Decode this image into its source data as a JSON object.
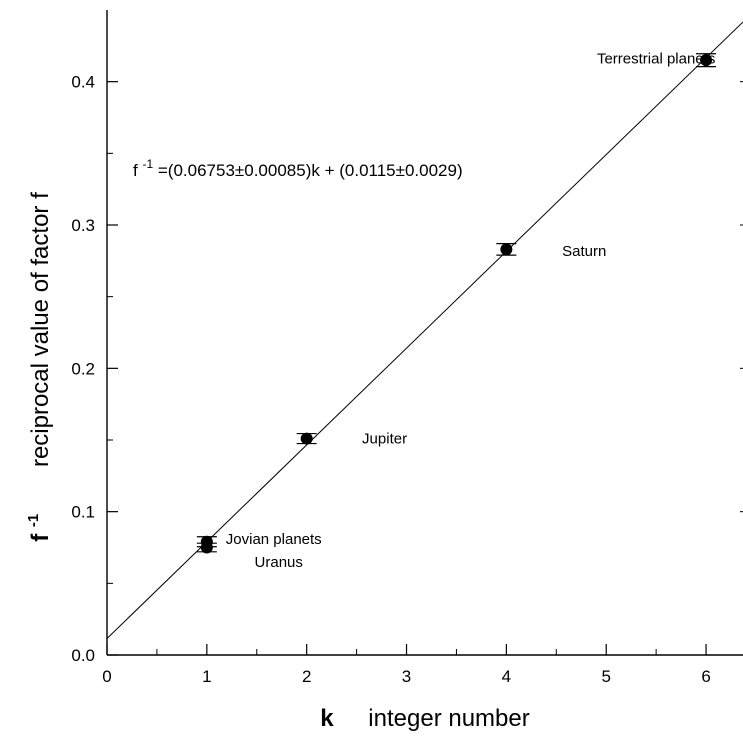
{
  "chart_data": {
    "type": "scatter",
    "title": "",
    "xlabel_symbol": "k",
    "xlabel": "integer number",
    "ylabel_symbol": "f",
    "ylabel_symbol_exponent": "-1",
    "ylabel": "reciprocal  value of factor f",
    "xlim": [
      0,
      6.37
    ],
    "ylim": [
      0.0,
      0.45
    ],
    "x_ticks": [
      "0",
      "1",
      "2",
      "3",
      "4",
      "5",
      "6"
    ],
    "y_ticks": [
      "0.0",
      "0.1",
      "0.2",
      "0.3",
      "0.4"
    ],
    "grid": false,
    "points": [
      {
        "x": 1,
        "y": 0.079,
        "err": 0.0035
      },
      {
        "x": 1,
        "y": 0.075,
        "err": 0.003
      },
      {
        "x": 2,
        "y": 0.151,
        "err": 0.0035
      },
      {
        "x": 4,
        "y": 0.283,
        "err": 0.004
      },
      {
        "x": 6,
        "y": 0.415,
        "err": 0.0045
      }
    ],
    "fit": {
      "slope": 0.06753,
      "intercept": 0.0115,
      "equation_prefix": "f",
      "equation_exponent": "-1",
      "equation_body": "=(0.06753±0.00085)k + (0.0115±0.0029)"
    },
    "annotations": [
      {
        "text": "Terrestrial planets",
        "x": 5.5,
        "y": 0.416
      },
      {
        "text": "Saturn",
        "x": 4.78,
        "y": 0.282
      },
      {
        "text": "Jupiter",
        "x": 2.78,
        "y": 0.151
      },
      {
        "text": "Jovian planets",
        "x": 1.67,
        "y": 0.081
      },
      {
        "text": "Uranus",
        "x": 1.72,
        "y": 0.065
      }
    ]
  }
}
